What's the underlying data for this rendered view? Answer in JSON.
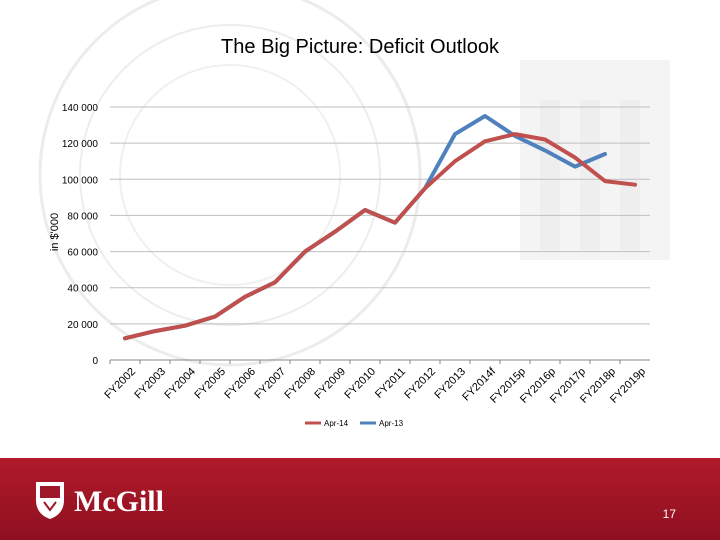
{
  "slide": {
    "title": "The Big Picture:  Deficit Outlook",
    "page_number": "17"
  },
  "footer": {
    "logo_text": "McGill",
    "color": "#a0162a"
  },
  "chart_data": {
    "type": "line",
    "ylabel": "in $'000",
    "ylim": [
      0,
      140000
    ],
    "yticks": [
      0,
      20000,
      40000,
      60000,
      80000,
      100000,
      120000,
      140000
    ],
    "ytick_labels": [
      "0",
      "20 000",
      "40 000",
      "60 000",
      "80 000",
      "100 000",
      "120 000",
      "140 000"
    ],
    "grid": true,
    "legend_position": "bottom",
    "categories": [
      "FY2002",
      "FY2003",
      "FY2004",
      "FY2005",
      "FY2006",
      "FY2007",
      "FY2008",
      "FY2009",
      "FY2010",
      "FY2011",
      "FY2012",
      "FY2013",
      "FY2014f",
      "FY2015p",
      "FY2016p",
      "FY2017p",
      "FY2018p",
      "FY2019p"
    ],
    "series": [
      {
        "name": "Apr-14",
        "color": "#c0504d",
        "values": [
          12000,
          16000,
          19000,
          24000,
          35000,
          43000,
          60000,
          71000,
          83000,
          76000,
          95000,
          110000,
          121000,
          125000,
          122000,
          112000,
          99000,
          97000
        ]
      },
      {
        "name": "Apr-13",
        "color": "#4f81bd",
        "values": [
          12000,
          16000,
          19000,
          24000,
          35000,
          43000,
          60000,
          71000,
          83000,
          76000,
          95000,
          125000,
          135000,
          124000,
          116000,
          107000,
          114000,
          null
        ]
      }
    ]
  }
}
